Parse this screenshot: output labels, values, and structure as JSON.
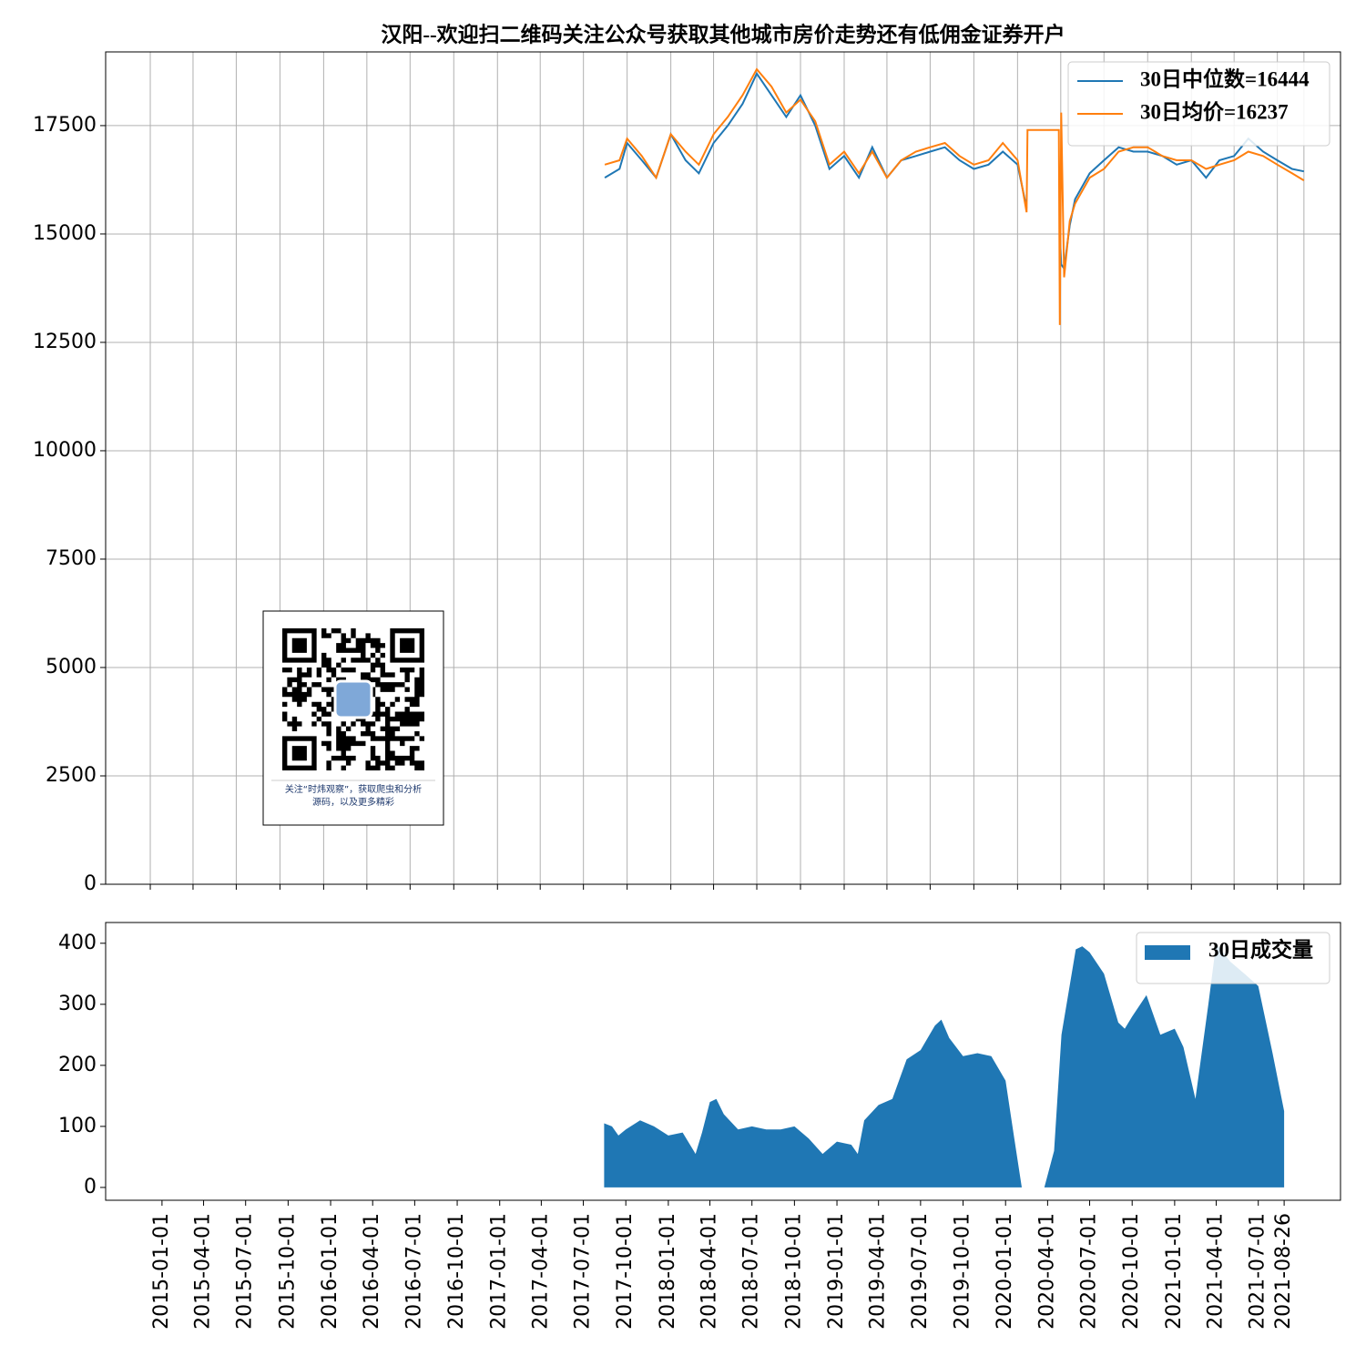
{
  "chart_data": [
    {
      "type": "line",
      "title": "汉阳--欢迎扫二维码关注公众号获取其他城市房价走势还有低佣金证券开户",
      "x": [
        "2017-08-15",
        "2017-09-15",
        "2017-10-01",
        "2017-11-01",
        "2017-12-01",
        "2018-01-01",
        "2018-02-01",
        "2018-03-01",
        "2018-04-01",
        "2018-05-01",
        "2018-06-01",
        "2018-07-01",
        "2018-08-01",
        "2018-09-01",
        "2018-10-01",
        "2018-11-01",
        "2018-12-01",
        "2019-01-01",
        "2019-02-01",
        "2019-03-01",
        "2019-04-01",
        "2019-05-01",
        "2019-06-01",
        "2019-07-01",
        "2019-08-01",
        "2019-09-01",
        "2019-10-01",
        "2019-11-01",
        "2019-12-01",
        "2020-01-01",
        "2020-01-20",
        "2020-01-22",
        "2020-03-28",
        "2020-03-30",
        "2020-04-02",
        "2020-04-08",
        "2020-04-20",
        "2020-05-01",
        "2020-06-01",
        "2020-07-01",
        "2020-08-01",
        "2020-09-01",
        "2020-10-01",
        "2020-11-01",
        "2020-12-01",
        "2021-01-01",
        "2021-02-01",
        "2021-03-01",
        "2021-04-01",
        "2021-05-01",
        "2021-06-01",
        "2021-07-01",
        "2021-08-01",
        "2021-08-26"
      ],
      "series": [
        {
          "name": "30日中位数=16444",
          "color": "#1f77b4",
          "values": [
            16300,
            16500,
            17100,
            16700,
            16300,
            17300,
            16700,
            16400,
            17100,
            17500,
            18000,
            18700,
            18200,
            17700,
            18200,
            17500,
            16500,
            16800,
            16300,
            17000,
            16300,
            16700,
            16800,
            16900,
            17000,
            16700,
            16500,
            16600,
            16900,
            16600,
            15600,
            null,
            null,
            15000,
            14300,
            14200,
            15200,
            15800,
            16400,
            16700,
            17000,
            16900,
            16900,
            16800,
            16600,
            16700,
            16300,
            16700,
            16800,
            17200,
            16900,
            16700,
            16500,
            16444
          ]
        },
        {
          "name": "30日均价=16237",
          "color": "#ff7f0e",
          "values": [
            16600,
            16700,
            17200,
            16800,
            16300,
            17300,
            16900,
            16600,
            17300,
            17700,
            18200,
            18800,
            18400,
            17800,
            18100,
            17600,
            16600,
            16900,
            16400,
            16900,
            16300,
            16700,
            16900,
            17000,
            17100,
            16800,
            16600,
            16700,
            17100,
            16700,
            15500,
            17400,
            17400,
            12900,
            17800,
            14000,
            15300,
            15700,
            16300,
            16500,
            16900,
            17000,
            17000,
            16800,
            16700,
            16700,
            16500,
            16600,
            16700,
            16900,
            16800,
            16600,
            16400,
            16237
          ]
        }
      ],
      "xlim": [
        "2014-09-29",
        "2021-11-11"
      ],
      "ylim": [
        0,
        19200
      ],
      "yticks": [
        0,
        2500,
        5000,
        7500,
        10000,
        12500,
        15000,
        17500
      ],
      "grid": true,
      "legend": "upper right",
      "qr_caption": [
        "关注“时炜观察”，获取爬虫和分析",
        "源码，以及更多精彩"
      ]
    },
    {
      "type": "area",
      "x": [
        "2017-08-15",
        "2017-09-01",
        "2017-09-15",
        "2017-10-01",
        "2017-11-01",
        "2017-12-01",
        "2018-01-01",
        "2018-02-01",
        "2018-03-01",
        "2018-03-15",
        "2018-04-01",
        "2018-04-15",
        "2018-05-01",
        "2018-06-01",
        "2018-07-01",
        "2018-08-01",
        "2018-09-01",
        "2018-10-01",
        "2018-11-01",
        "2018-12-01",
        "2019-01-01",
        "2019-02-01",
        "2019-02-15",
        "2019-03-01",
        "2019-04-01",
        "2019-05-01",
        "2019-06-01",
        "2019-07-01",
        "2019-08-01",
        "2019-08-15",
        "2019-09-01",
        "2019-10-01",
        "2019-11-01",
        "2019-12-01",
        "2020-01-01",
        "2020-01-20",
        "2020-02-05",
        "2020-03-25",
        "2020-04-15",
        "2020-05-01",
        "2020-06-01",
        "2020-06-15",
        "2020-07-01",
        "2020-08-01",
        "2020-09-01",
        "2020-09-15",
        "2020-10-01",
        "2020-11-01",
        "2020-12-01",
        "2021-01-01",
        "2021-01-20",
        "2021-02-15",
        "2021-03-15",
        "2021-04-01",
        "2021-05-01",
        "2021-06-01",
        "2021-07-01",
        "2021-08-01",
        "2021-08-26"
      ],
      "series": [
        {
          "name": "30日成交量",
          "color": "#1f77b4",
          "values": [
            105,
            100,
            85,
            95,
            110,
            100,
            85,
            90,
            55,
            90,
            140,
            145,
            120,
            95,
            100,
            95,
            95,
            100,
            80,
            55,
            75,
            70,
            55,
            110,
            135,
            145,
            210,
            225,
            265,
            275,
            245,
            215,
            220,
            215,
            175,
            80,
            0,
            0,
            60,
            250,
            390,
            395,
            385,
            350,
            270,
            260,
            280,
            315,
            250,
            260,
            230,
            145,
            300,
            400,
            370,
            350,
            330,
            220,
            125
          ]
        }
      ],
      "xlim": [
        "2014-09-01",
        "2021-12-26"
      ],
      "ylim": [
        -21,
        434
      ],
      "yticks": [
        0,
        100,
        200,
        300,
        400
      ],
      "xticks": [
        "2015-01-01",
        "2015-04-01",
        "2015-07-01",
        "2015-10-01",
        "2016-01-01",
        "2016-04-01",
        "2016-07-01",
        "2016-10-01",
        "2017-01-01",
        "2017-04-01",
        "2017-07-01",
        "2017-10-01",
        "2018-01-01",
        "2018-04-01",
        "2018-07-01",
        "2018-10-01",
        "2019-01-01",
        "2019-04-01",
        "2019-07-01",
        "2019-10-01",
        "2020-01-01",
        "2020-04-01",
        "2020-07-01",
        "2020-10-01",
        "2021-01-01",
        "2021-04-01",
        "2021-07-01",
        "2021-08-26"
      ],
      "grid": false,
      "legend": "upper right"
    }
  ]
}
